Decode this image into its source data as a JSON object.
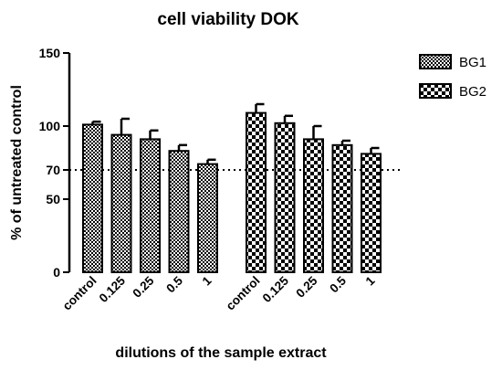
{
  "chart_data": {
    "type": "bar",
    "title": "cell viability DOK",
    "xlabel": "dilutions of the sample extract",
    "ylabel": "% of untreated control",
    "ylim": [
      0,
      150
    ],
    "yticks": [
      0,
      50,
      70,
      100,
      150
    ],
    "reference_line": 70,
    "grid": false,
    "legend_position": "top-right",
    "categories": [
      "control",
      "0.125",
      "0.25",
      "0.5",
      "1"
    ],
    "series": [
      {
        "name": "BG1",
        "values": [
          101,
          94,
          91,
          83,
          74
        ],
        "errors": [
          2,
          11,
          6,
          4,
          3
        ],
        "pattern": "fine-check"
      },
      {
        "name": "BG2",
        "values": [
          109,
          102,
          91,
          87,
          81
        ],
        "errors": [
          6,
          5,
          9,
          3,
          4
        ],
        "pattern": "coarse-check"
      }
    ]
  }
}
